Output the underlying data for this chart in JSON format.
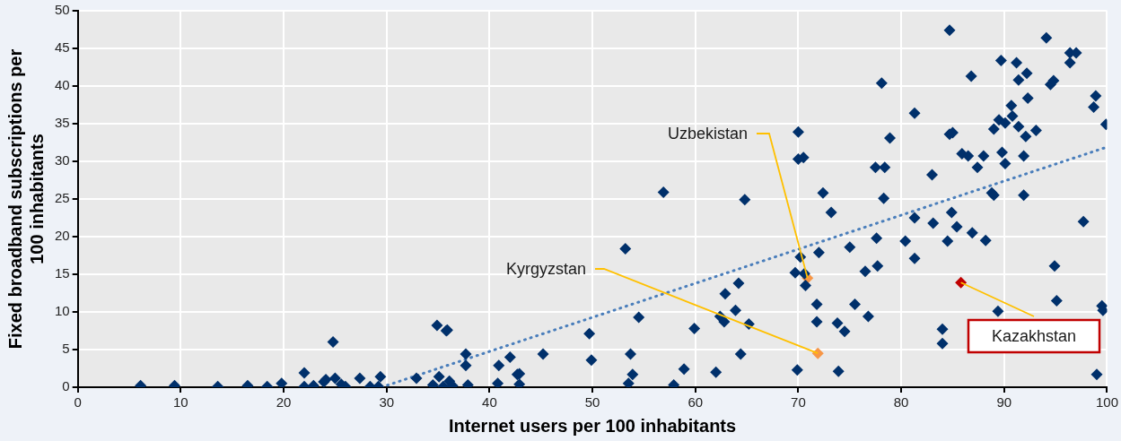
{
  "chart_data": {
    "type": "scatter",
    "xlabel": "Internet users per 100 inhabitants",
    "ylabel": "Fixed broadband subscriptions per 100 inhabitants",
    "xlim": [
      0,
      100
    ],
    "xticks": [
      0,
      10,
      20,
      30,
      40,
      50,
      60,
      70,
      80,
      90,
      100
    ],
    "ylim": [
      0,
      50
    ],
    "yticks": [
      0,
      5,
      10,
      15,
      20,
      25,
      30,
      35,
      40,
      45,
      50
    ],
    "grid": true,
    "legend": false,
    "marker": "diamond",
    "series": [
      {
        "color": "#00306b",
        "x": [
          6.1,
          9.4,
          13.6,
          16.5,
          18.4,
          19.8,
          22,
          22,
          22.9,
          23.9,
          24.1,
          24.8,
          25,
          25.6,
          26,
          27.4,
          28.4,
          29.2,
          29.4,
          32.9,
          34.5,
          34.9,
          35.8,
          35.1,
          35.5,
          36.1,
          36.4,
          37.7,
          37.7,
          37.9,
          35.9,
          40.8,
          40.9,
          42,
          42.7,
          42.9,
          42.9,
          45.2,
          49.7,
          49.9,
          53.2,
          53.5,
          53.7,
          53.9,
          54.5,
          56.9,
          57.9,
          58.9,
          59.9,
          62,
          62.4,
          62.8,
          62.9,
          63.9,
          64.2,
          64.4,
          64.8,
          65.2,
          69.7,
          69.9,
          70,
          70,
          70.2,
          70.5,
          70.6,
          70.7,
          71.8,
          71.8,
          72,
          72.4,
          73.2,
          73.8,
          73.9,
          74.5,
          75,
          75.5,
          76.5,
          76.8,
          77.5,
          77.6,
          77.7,
          78.1,
          78.3,
          78.4,
          78.9,
          80.4,
          81.3,
          81.3,
          81.3,
          83,
          83.1,
          84,
          84,
          84.5,
          84.7,
          84.7,
          84.9,
          85,
          85.4,
          85.9,
          86.5,
          86.8,
          86.9,
          87.4,
          88,
          88.2,
          88.8,
          89,
          89,
          89.4,
          89.5,
          89.7,
          89.8,
          90.1,
          90.1,
          90.7,
          90.8,
          91.2,
          91.4,
          91.4,
          91.9,
          91.9,
          92.1,
          92.2,
          92.3,
          93.1,
          94.1,
          94.5,
          94.8,
          94.9,
          95.1,
          96.4,
          96.4,
          97,
          97.7,
          98.7,
          98.9,
          99,
          99.5,
          99.6,
          99.9
        ],
        "values": [
          0.2,
          0.2,
          0.1,
          0.2,
          0.1,
          0.5,
          1.9,
          0.1,
          0.2,
          0.7,
          1,
          6,
          1.2,
          0.4,
          0.1,
          1.2,
          0.1,
          0.1,
          1.4,
          1.2,
          0.3,
          8.2,
          7.5,
          1.4,
          0.1,
          0.8,
          0.2,
          4.4,
          2.9,
          0.3,
          7.6,
          0.5,
          2.9,
          4,
          1.7,
          1.8,
          0.4,
          4.4,
          7.1,
          3.6,
          18.4,
          0.5,
          4.4,
          1.7,
          9.3,
          25.9,
          0.3,
          2.4,
          7.8,
          2,
          9.4,
          8.7,
          12.4,
          10.2,
          13.8,
          4.4,
          24.9,
          8.4,
          15.2,
          2.3,
          33.9,
          30.3,
          17.3,
          30.5,
          15.1,
          13.5,
          11,
          8.7,
          17.9,
          25.8,
          23.2,
          8.5,
          2.1,
          7.4,
          18.6,
          11,
          15.4,
          9.4,
          29.2,
          19.8,
          16.1,
          40.4,
          25.1,
          29.2,
          33.1,
          19.4,
          36.4,
          22.5,
          17.1,
          28.2,
          21.8,
          7.7,
          5.8,
          19.4,
          47.4,
          33.6,
          23.2,
          33.8,
          21.3,
          31,
          30.7,
          41.3,
          20.5,
          29.2,
          30.7,
          19.5,
          25.8,
          25.5,
          34.3,
          10.1,
          35.5,
          43.4,
          31.2,
          35.1,
          29.7,
          37.4,
          36,
          43.1,
          40.8,
          34.6,
          30.7,
          25.5,
          33.3,
          41.7,
          38.4,
          34.1,
          46.4,
          40.2,
          40.7,
          16.1,
          11.5,
          44.4,
          43.1,
          44.4,
          22,
          37.2,
          38.7,
          1.7,
          10.8,
          10.2,
          34.9
        ]
      },
      {
        "name": "Uzbekistan",
        "color": "#f79646",
        "x": [
          70.9
        ],
        "values": [
          14.5
        ]
      },
      {
        "name": "Kyrgyzstan",
        "color": "#f79646",
        "x": [
          71.9
        ],
        "values": [
          4.5
        ]
      },
      {
        "name": "Kazakhstan",
        "color": "#c00000",
        "x": [
          85.8
        ],
        "values": [
          13.9
        ]
      },
      {
        "type": "line",
        "color": "#4a7ebb",
        "line_style": "dotted",
        "marker": "none",
        "x": [
          29.5,
          100
        ],
        "values": [
          0,
          31.9
        ]
      }
    ]
  }
}
